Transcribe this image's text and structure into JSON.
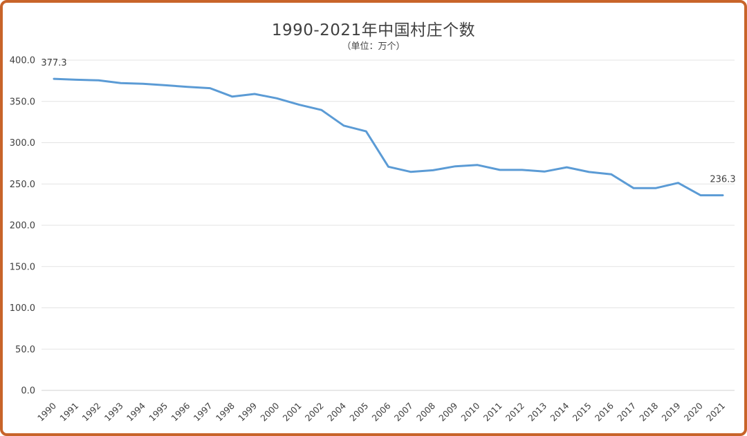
{
  "chart_data": {
    "type": "line",
    "title": "1990-2021年中国村庄个数",
    "subtitle": "（单位：万个）",
    "xlabel": "",
    "ylabel": "",
    "ylim": [
      0,
      400
    ],
    "yticks": [
      "0.0",
      "50.0",
      "100.0",
      "150.0",
      "200.0",
      "250.0",
      "300.0",
      "350.0",
      "400.0"
    ],
    "grid": true,
    "legend": "none",
    "line_color": "#5b9bd5",
    "categories": [
      "1990",
      "1991",
      "1992",
      "1993",
      "1994",
      "1995",
      "1996",
      "1997",
      "1998",
      "1999",
      "2000",
      "2001",
      "2002",
      "2004",
      "2005",
      "2006",
      "2007",
      "2008",
      "2009",
      "2010",
      "2011",
      "2012",
      "2013",
      "2014",
      "2015",
      "2016",
      "2017",
      "2018",
      "2019",
      "2020",
      "2021"
    ],
    "series": [
      {
        "values": [
          377.3,
          376.2,
          375.5,
          372.1,
          371.3,
          369.5,
          367.6,
          366.0,
          355.8,
          359.0,
          353.7,
          345.9,
          339.6,
          320.7,
          313.7,
          270.9,
          264.7,
          266.6,
          271.4,
          273.0,
          267.0,
          267.0,
          265.0,
          270.2,
          264.5,
          261.7,
          244.9,
          245.0,
          251.3,
          236.3,
          236.3
        ]
      }
    ],
    "data_labels": [
      {
        "index": 0,
        "text": "377.3"
      },
      {
        "index": 30,
        "text": "236.3"
      }
    ]
  }
}
